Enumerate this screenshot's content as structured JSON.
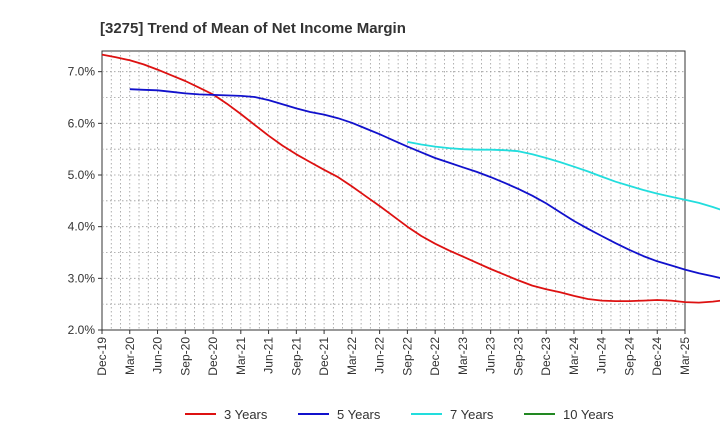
{
  "chart_data": {
    "type": "line",
    "title": "[3275]  Trend of Mean of Net Income Margin",
    "xlabel": "",
    "ylabel": "",
    "ylim": [
      2.0,
      7.4
    ],
    "y_ticks": [
      "2.0%",
      "3.0%",
      "4.0%",
      "5.0%",
      "6.0%",
      "7.0%"
    ],
    "y_tick_values": [
      2.0,
      3.0,
      4.0,
      5.0,
      6.0,
      7.0
    ],
    "x_ticks": [
      "Dec-19",
      "Mar-20",
      "Jun-20",
      "Sep-20",
      "Dec-20",
      "Mar-21",
      "Jun-21",
      "Sep-21",
      "Dec-21",
      "Mar-22",
      "Jun-22",
      "Sep-22",
      "Dec-22",
      "Mar-23",
      "Jun-23",
      "Sep-23",
      "Dec-23",
      "Mar-24",
      "Jun-24",
      "Sep-24",
      "Dec-24",
      "Mar-25"
    ],
    "grid": true,
    "legend_position": "bottom",
    "series": [
      {
        "name": "3 Years",
        "color": "#dd1111",
        "values": [
          7.33,
          7.28,
          7.22,
          7.14,
          7.04,
          6.93,
          6.82,
          6.69,
          6.56,
          6.38,
          6.18,
          5.97,
          5.76,
          5.57,
          5.4,
          5.25,
          5.1,
          4.96,
          4.78,
          4.59,
          4.4,
          4.2,
          4.0,
          3.82,
          3.67,
          3.54,
          3.42,
          3.3,
          3.18,
          3.07,
          2.96,
          2.86,
          2.79,
          2.73,
          2.66,
          2.6,
          2.57,
          2.56,
          2.56,
          2.57,
          2.58,
          2.57,
          2.54,
          2.53,
          2.55,
          2.58,
          2.62
        ]
      },
      {
        "name": "5 Years",
        "color": "#1111cc",
        "values": [
          null,
          null,
          6.66,
          6.65,
          6.64,
          6.61,
          6.58,
          6.56,
          6.55,
          6.54,
          6.53,
          6.51,
          6.45,
          6.37,
          6.29,
          6.22,
          6.17,
          6.1,
          6.01,
          5.9,
          5.79,
          5.67,
          5.55,
          5.44,
          5.33,
          5.24,
          5.15,
          5.06,
          4.96,
          4.85,
          4.73,
          4.6,
          4.45,
          4.28,
          4.11,
          3.96,
          3.82,
          3.68,
          3.55,
          3.43,
          3.33,
          3.25,
          3.17,
          3.1,
          3.04,
          2.98,
          2.92
        ]
      },
      {
        "name": "7 Years",
        "color": "#22dddd",
        "values": [
          null,
          null,
          null,
          null,
          null,
          null,
          null,
          null,
          null,
          null,
          null,
          null,
          null,
          null,
          null,
          null,
          null,
          null,
          null,
          null,
          null,
          null,
          5.64,
          5.59,
          5.55,
          5.52,
          5.5,
          5.49,
          5.49,
          5.48,
          5.46,
          5.4,
          5.33,
          5.25,
          5.16,
          5.07,
          4.97,
          4.87,
          4.79,
          4.71,
          4.64,
          4.58,
          4.52,
          4.46,
          4.38,
          4.29,
          4.18
        ]
      },
      {
        "name": "10 Years",
        "color": "#228822",
        "values": []
      }
    ]
  }
}
